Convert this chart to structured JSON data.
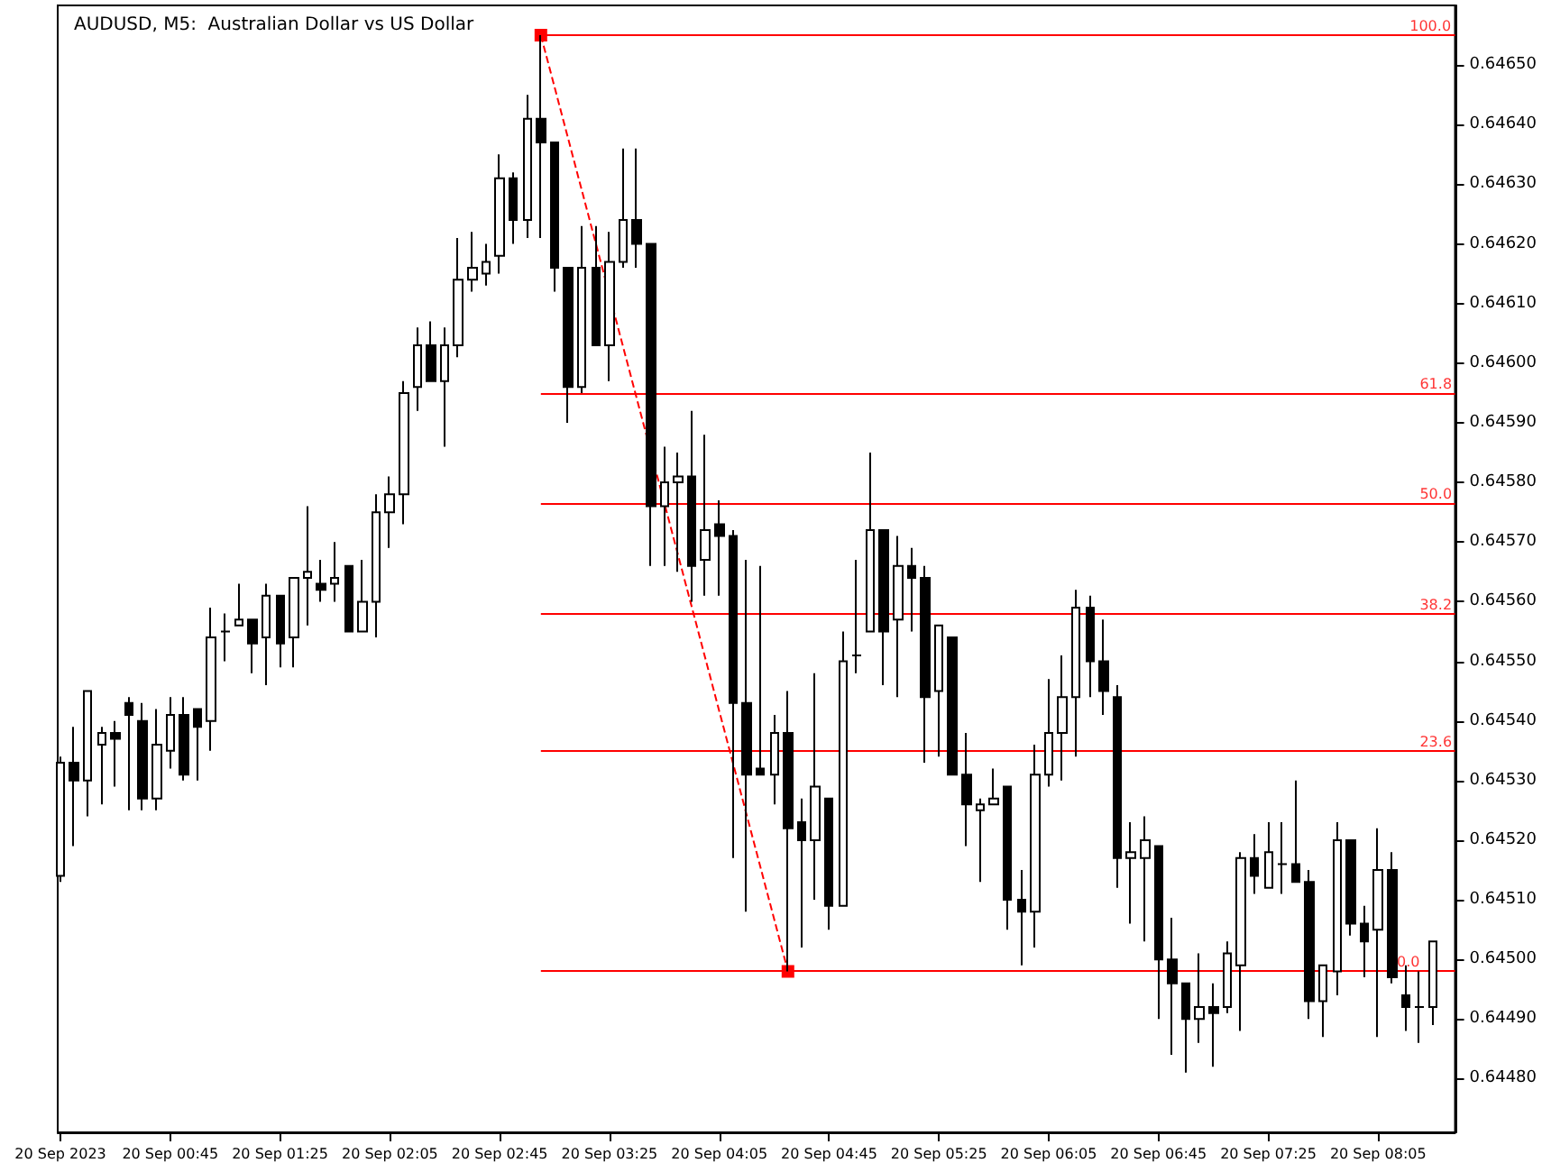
{
  "chart_data": {
    "type": "candlestick",
    "title": "AUDUSD, M5:  Australian Dollar vs US Dollar",
    "x": [
      "2023-09-20T00:05",
      "2023-09-20T00:10",
      "2023-09-20T00:15",
      "2023-09-20T00:20",
      "2023-09-20T00:25",
      "2023-09-20T00:30",
      "2023-09-20T00:35",
      "2023-09-20T00:40",
      "2023-09-20T00:45",
      "2023-09-20T00:50",
      "2023-09-20T00:55",
      "2023-09-20T01:00",
      "2023-09-20T01:05",
      "2023-09-20T01:10",
      "2023-09-20T01:15",
      "2023-09-20T01:20",
      "2023-09-20T01:25",
      "2023-09-20T01:30",
      "2023-09-20T01:35",
      "2023-09-20T01:40",
      "2023-09-20T01:45",
      "2023-09-20T01:50",
      "2023-09-20T01:55",
      "2023-09-20T02:00",
      "2023-09-20T02:05",
      "2023-09-20T02:10",
      "2023-09-20T02:15",
      "2023-09-20T02:20",
      "2023-09-20T02:25",
      "2023-09-20T02:30",
      "2023-09-20T02:35",
      "2023-09-20T02:40",
      "2023-09-20T02:45",
      "2023-09-20T02:50",
      "2023-09-20T02:55",
      "2023-09-20T03:00",
      "2023-09-20T03:05",
      "2023-09-20T03:10",
      "2023-09-20T03:15",
      "2023-09-20T03:20",
      "2023-09-20T03:25",
      "2023-09-20T03:30",
      "2023-09-20T03:35",
      "2023-09-20T03:40",
      "2023-09-20T03:45",
      "2023-09-20T03:50",
      "2023-09-20T03:55",
      "2023-09-20T04:00",
      "2023-09-20T04:05",
      "2023-09-20T04:10",
      "2023-09-20T04:15",
      "2023-09-20T04:20",
      "2023-09-20T04:25",
      "2023-09-20T04:30",
      "2023-09-20T04:35",
      "2023-09-20T04:40",
      "2023-09-20T04:45",
      "2023-09-20T04:50",
      "2023-09-20T04:55",
      "2023-09-20T05:00",
      "2023-09-20T05:05",
      "2023-09-20T05:10",
      "2023-09-20T05:15",
      "2023-09-20T05:20",
      "2023-09-20T05:25",
      "2023-09-20T05:30",
      "2023-09-20T05:35",
      "2023-09-20T05:40",
      "2023-09-20T05:45",
      "2023-09-20T05:50",
      "2023-09-20T05:55",
      "2023-09-20T06:00",
      "2023-09-20T06:05",
      "2023-09-20T06:10",
      "2023-09-20T06:15",
      "2023-09-20T06:20",
      "2023-09-20T06:25",
      "2023-09-20T06:30",
      "2023-09-20T06:35",
      "2023-09-20T06:40",
      "2023-09-20T06:45",
      "2023-09-20T06:50",
      "2023-09-20T06:55",
      "2023-09-20T07:00",
      "2023-09-20T07:05",
      "2023-09-20T07:10",
      "2023-09-20T07:15",
      "2023-09-20T07:20",
      "2023-09-20T07:25",
      "2023-09-20T07:30",
      "2023-09-20T07:35",
      "2023-09-20T07:40",
      "2023-09-20T07:45",
      "2023-09-20T07:50",
      "2023-09-20T07:55",
      "2023-09-20T08:00",
      "2023-09-20T08:05",
      "2023-09-20T08:10",
      "2023-09-20T08:15",
      "2023-09-20T08:20",
      "2023-09-20T08:25"
    ],
    "ohlc": [
      [
        0.64514,
        0.64534,
        0.64513,
        0.64533
      ],
      [
        0.64533,
        0.64539,
        0.64519,
        0.6453
      ],
      [
        0.6453,
        0.64545,
        0.64524,
        0.64545
      ],
      [
        0.64536,
        0.64539,
        0.64526,
        0.64538
      ],
      [
        0.64538,
        0.6454,
        0.64529,
        0.64537
      ],
      [
        0.64543,
        0.64544,
        0.64525,
        0.64541
      ],
      [
        0.6454,
        0.64543,
        0.64525,
        0.64527
      ],
      [
        0.64527,
        0.64542,
        0.64525,
        0.64536
      ],
      [
        0.64535,
        0.64544,
        0.64532,
        0.64541
      ],
      [
        0.64541,
        0.64544,
        0.6453,
        0.64531
      ],
      [
        0.64542,
        0.64542,
        0.6453,
        0.64539
      ],
      [
        0.6454,
        0.64559,
        0.64535,
        0.64554
      ],
      [
        0.64555,
        0.64558,
        0.6455,
        0.64555
      ],
      [
        0.64556,
        0.64563,
        0.64556,
        0.64557
      ],
      [
        0.64557,
        0.64557,
        0.64548,
        0.64553
      ],
      [
        0.64554,
        0.64563,
        0.64546,
        0.64561
      ],
      [
        0.64561,
        0.64561,
        0.64549,
        0.64553
      ],
      [
        0.64554,
        0.64564,
        0.64549,
        0.64564
      ],
      [
        0.64564,
        0.64576,
        0.64556,
        0.64565
      ],
      [
        0.64563,
        0.64567,
        0.6456,
        0.64562
      ],
      [
        0.64563,
        0.6457,
        0.6456,
        0.64564
      ],
      [
        0.64566,
        0.64566,
        0.64555,
        0.64555
      ],
      [
        0.64555,
        0.64567,
        0.64555,
        0.6456
      ],
      [
        0.6456,
        0.64578,
        0.64554,
        0.64575
      ],
      [
        0.64575,
        0.64581,
        0.64569,
        0.64578
      ],
      [
        0.64578,
        0.64597,
        0.64573,
        0.64595
      ],
      [
        0.64596,
        0.64606,
        0.64592,
        0.64603
      ],
      [
        0.64603,
        0.64607,
        0.64597,
        0.64597
      ],
      [
        0.64597,
        0.64606,
        0.64586,
        0.64603
      ],
      [
        0.64603,
        0.64621,
        0.64601,
        0.64614
      ],
      [
        0.64614,
        0.64622,
        0.64612,
        0.64616
      ],
      [
        0.64615,
        0.6462,
        0.64613,
        0.64617
      ],
      [
        0.64618,
        0.64635,
        0.64615,
        0.64631
      ],
      [
        0.64631,
        0.64632,
        0.6462,
        0.64624
      ],
      [
        0.64624,
        0.64645,
        0.64621,
        0.64641
      ],
      [
        0.64641,
        0.64655,
        0.64621,
        0.64637
      ],
      [
        0.64637,
        0.64637,
        0.64612,
        0.64616
      ],
      [
        0.64616,
        0.64616,
        0.6459,
        0.64596
      ],
      [
        0.64596,
        0.64623,
        0.64595,
        0.64616
      ],
      [
        0.64616,
        0.64623,
        0.64603,
        0.64603
      ],
      [
        0.64603,
        0.64622,
        0.64597,
        0.64617
      ],
      [
        0.64617,
        0.64636,
        0.64616,
        0.64624
      ],
      [
        0.64624,
        0.64636,
        0.64616,
        0.6462
      ],
      [
        0.6462,
        0.6462,
        0.64566,
        0.64576
      ],
      [
        0.64576,
        0.64586,
        0.64566,
        0.6458
      ],
      [
        0.6458,
        0.64585,
        0.64565,
        0.64581
      ],
      [
        0.64581,
        0.64592,
        0.6456,
        0.64566
      ],
      [
        0.64567,
        0.64588,
        0.64561,
        0.64572
      ],
      [
        0.64573,
        0.64577,
        0.64561,
        0.64571
      ],
      [
        0.64571,
        0.64572,
        0.64517,
        0.64543
      ],
      [
        0.64543,
        0.64567,
        0.64508,
        0.64531
      ],
      [
        0.64532,
        0.64566,
        0.64531,
        0.64531
      ],
      [
        0.64531,
        0.64541,
        0.64526,
        0.64538
      ],
      [
        0.64538,
        0.64545,
        0.64498,
        0.64522
      ],
      [
        0.64523,
        0.64527,
        0.64502,
        0.6452
      ],
      [
        0.6452,
        0.64548,
        0.6451,
        0.64529
      ],
      [
        0.64527,
        0.64527,
        0.64505,
        0.64509
      ],
      [
        0.64509,
        0.64555,
        0.64509,
        0.6455
      ],
      [
        0.64551,
        0.64567,
        0.64548,
        0.64551
      ],
      [
        0.64555,
        0.64585,
        0.64555,
        0.64572
      ],
      [
        0.64572,
        0.64572,
        0.64546,
        0.64555
      ],
      [
        0.64557,
        0.64571,
        0.64544,
        0.64566
      ],
      [
        0.64566,
        0.64569,
        0.64555,
        0.64564
      ],
      [
        0.64564,
        0.64566,
        0.64533,
        0.64544
      ],
      [
        0.64545,
        0.64556,
        0.64534,
        0.64556
      ],
      [
        0.64554,
        0.64554,
        0.64531,
        0.64531
      ],
      [
        0.64531,
        0.64538,
        0.64519,
        0.64526
      ],
      [
        0.64525,
        0.64527,
        0.64513,
        0.64526
      ],
      [
        0.64526,
        0.64532,
        0.64526,
        0.64527
      ],
      [
        0.64529,
        0.64529,
        0.64505,
        0.6451
      ],
      [
        0.6451,
        0.64515,
        0.64499,
        0.64508
      ],
      [
        0.64508,
        0.64536,
        0.64502,
        0.64531
      ],
      [
        0.64531,
        0.64547,
        0.64529,
        0.64538
      ],
      [
        0.64538,
        0.64551,
        0.6453,
        0.64544
      ],
      [
        0.64544,
        0.64562,
        0.64534,
        0.64559
      ],
      [
        0.64559,
        0.64561,
        0.64544,
        0.6455
      ],
      [
        0.6455,
        0.64557,
        0.64541,
        0.64545
      ],
      [
        0.64544,
        0.64546,
        0.64512,
        0.64517
      ],
      [
        0.64517,
        0.64523,
        0.64506,
        0.64518
      ],
      [
        0.64517,
        0.64524,
        0.64503,
        0.6452
      ],
      [
        0.64519,
        0.64519,
        0.6449,
        0.645
      ],
      [
        0.645,
        0.64507,
        0.64484,
        0.64496
      ],
      [
        0.64496,
        0.64496,
        0.64481,
        0.6449
      ],
      [
        0.6449,
        0.64501,
        0.64486,
        0.64492
      ],
      [
        0.64492,
        0.64496,
        0.64482,
        0.64491
      ],
      [
        0.64492,
        0.64503,
        0.64491,
        0.64501
      ],
      [
        0.64499,
        0.64518,
        0.64488,
        0.64517
      ],
      [
        0.64517,
        0.64521,
        0.64511,
        0.64514
      ],
      [
        0.64512,
        0.64523,
        0.64512,
        0.64518
      ],
      [
        0.64516,
        0.64523,
        0.64511,
        0.64516
      ],
      [
        0.64516,
        0.6453,
        0.64513,
        0.64513
      ],
      [
        0.64513,
        0.64515,
        0.6449,
        0.64493
      ],
      [
        0.64493,
        0.64499,
        0.64487,
        0.64499
      ],
      [
        0.64498,
        0.64523,
        0.64494,
        0.6452
      ],
      [
        0.6452,
        0.6452,
        0.64504,
        0.64506
      ],
      [
        0.64506,
        0.64509,
        0.64497,
        0.64503
      ],
      [
        0.64505,
        0.64522,
        0.64487,
        0.64515
      ],
      [
        0.64515,
        0.64518,
        0.64496,
        0.64497
      ],
      [
        0.64494,
        0.64499,
        0.64488,
        0.64492
      ],
      [
        0.64492,
        0.64498,
        0.64486,
        0.64492
      ],
      [
        0.64492,
        0.64503,
        0.64489,
        0.64503
      ]
    ],
    "series": [
      {
        "type": "line",
        "x": [
          "2023-09-20T03:00",
          "2023-09-20T04:30"
        ],
        "values": [
          0.64655,
          0.64498
        ],
        "color": "#ff0000",
        "line_style": "dashed",
        "marker": "square"
      }
    ],
    "ylim": [
      0.64471,
      0.6466
    ],
    "yticks": [
      {
        "value": 0.6448,
        "label": "0.64480"
      },
      {
        "value": 0.6449,
        "label": "0.64490"
      },
      {
        "value": 0.645,
        "label": "0.64500"
      },
      {
        "value": 0.6451,
        "label": "0.64510"
      },
      {
        "value": 0.6452,
        "label": "0.64520"
      },
      {
        "value": 0.6453,
        "label": "0.64530"
      },
      {
        "value": 0.6454,
        "label": "0.64540"
      },
      {
        "value": 0.6455,
        "label": "0.64550"
      },
      {
        "value": 0.6456,
        "label": "0.64560"
      },
      {
        "value": 0.6457,
        "label": "0.64570"
      },
      {
        "value": 0.6458,
        "label": "0.64580"
      },
      {
        "value": 0.6459,
        "label": "0.64590"
      },
      {
        "value": 0.646,
        "label": "0.64600"
      },
      {
        "value": 0.6461,
        "label": "0.64610"
      },
      {
        "value": 0.6462,
        "label": "0.64620"
      },
      {
        "value": 0.6463,
        "label": "0.64630"
      },
      {
        "value": 0.6464,
        "label": "0.64640"
      },
      {
        "value": 0.6465,
        "label": "0.64650"
      }
    ],
    "xticks": [
      {
        "value": "2023-09-20T00:05",
        "label": "20 Sep 2023"
      },
      {
        "value": "2023-09-20T00:45",
        "label": "20 Sep 00:45"
      },
      {
        "value": "2023-09-20T01:25",
        "label": "20 Sep 01:25"
      },
      {
        "value": "2023-09-20T02:05",
        "label": "20 Sep 02:05"
      },
      {
        "value": "2023-09-20T02:45",
        "label": "20 Sep 02:45"
      },
      {
        "value": "2023-09-20T03:25",
        "label": "20 Sep 03:25"
      },
      {
        "value": "2023-09-20T04:05",
        "label": "20 Sep 04:05"
      },
      {
        "value": "2023-09-20T04:45",
        "label": "20 Sep 04:45"
      },
      {
        "value": "2023-09-20T05:25",
        "label": "20 Sep 05:25"
      },
      {
        "value": "2023-09-20T06:05",
        "label": "20 Sep 06:05"
      },
      {
        "value": "2023-09-20T06:45",
        "label": "20 Sep 06:45"
      },
      {
        "value": "2023-09-20T07:25",
        "label": "20 Sep 07:25"
      },
      {
        "value": "2023-09-20T08:05",
        "label": "20 Sep 08:05"
      }
    ],
    "xlim": [
      "2023-09-20T00:04",
      "2023-09-20T08:33"
    ],
    "ref_lines": [
      {
        "axis": "y",
        "value": 0.64655,
        "color": "#ff0000"
      },
      {
        "axis": "y",
        "value": 0.64595,
        "color": "#ff0000"
      },
      {
        "axis": "y",
        "value": 0.645765,
        "color": "#ff0000"
      },
      {
        "axis": "y",
        "value": 0.64558,
        "color": "#ff0000"
      },
      {
        "axis": "y",
        "value": 0.64535,
        "color": "#ff0000"
      },
      {
        "axis": "y",
        "value": 0.64498,
        "color": "#ff0000"
      }
    ],
    "annotations": [
      {
        "text": "100.0",
        "x": "2023-09-20T08:24",
        "y": 0.64655
      },
      {
        "text": "61.8",
        "x": "2023-09-20T08:26",
        "y": 0.64595
      },
      {
        "text": "50.0",
        "x": "2023-09-20T08:26",
        "y": 0.645765
      },
      {
        "text": "38.2",
        "x": "2023-09-20T08:26",
        "y": 0.64558
      },
      {
        "text": "23.6",
        "x": "2023-09-20T08:26",
        "y": 0.64535
      },
      {
        "text": "0.0",
        "x": "2023-09-20T08:16",
        "y": 0.64498
      }
    ],
    "grid": false
  }
}
